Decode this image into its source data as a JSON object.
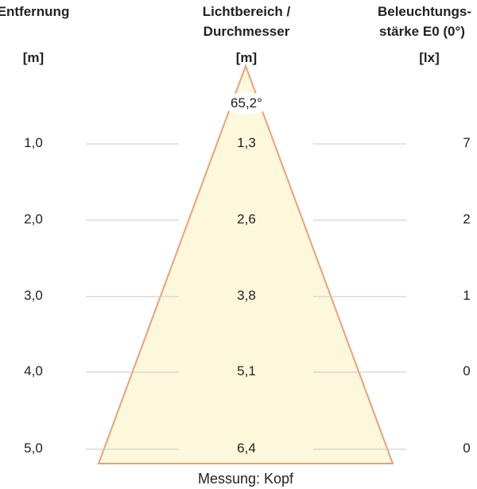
{
  "headers": {
    "distance": "Entfernung",
    "distance_unit": "[m]",
    "diameter_1": "Lichtbereich /",
    "diameter_2": "Durchmesser",
    "diameter_unit": "[m]",
    "illum_1": "Beleuchtungs-",
    "illum_2": "stärke E0 (0°)",
    "illum_unit": "[lx]"
  },
  "beam_angle": "65,2°",
  "rows": [
    {
      "distance": "1,0",
      "diameter": "1,3",
      "lux": "7"
    },
    {
      "distance": "2,0",
      "diameter": "2,6",
      "lux": "2"
    },
    {
      "distance": "3,0",
      "diameter": "3,8",
      "lux": "1"
    },
    {
      "distance": "4,0",
      "diameter": "5,1",
      "lux": "0"
    },
    {
      "distance": "5,0",
      "diameter": "6,4",
      "lux": "0"
    }
  ],
  "footer": "Messung: Kopf",
  "colors": {
    "cone_fill": "#fdf7dc",
    "cone_stroke": "#e8a27a",
    "line": "#c8c8c8"
  }
}
